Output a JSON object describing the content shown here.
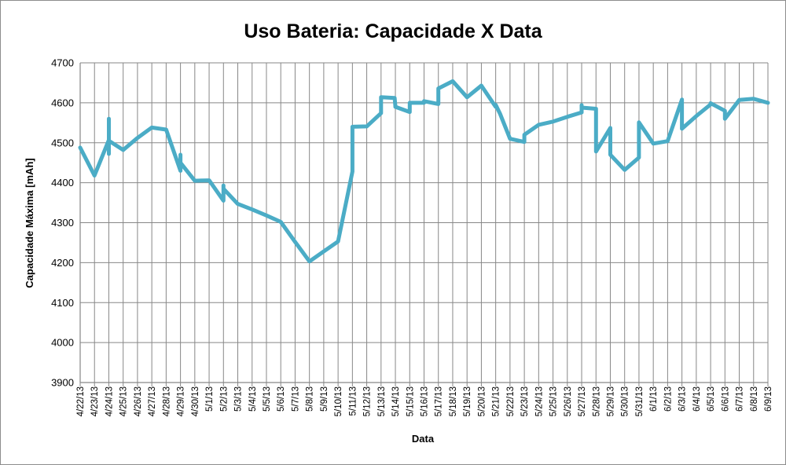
{
  "chart_data": {
    "type": "line",
    "title": "Uso Bateria: Capacidade X Data",
    "xlabel": "Data",
    "ylabel": "Capacidade Máxima [mAh]",
    "ylim": [
      3900,
      4700
    ],
    "ytick_step": 100,
    "grid": true,
    "legend": "none",
    "colors": {
      "line": "#4bacc6",
      "grid": "#878787",
      "axis": "#878787"
    },
    "categories": [
      "4/22/13",
      "4/23/13",
      "4/24/13",
      "4/25/13",
      "4/26/13",
      "4/27/13",
      "4/28/13",
      "4/29/13",
      "4/30/13",
      "5/1/13",
      "5/2/13",
      "5/3/13",
      "5/4/13",
      "5/5/13",
      "5/6/13",
      "5/7/13",
      "5/8/13",
      "5/9/13",
      "5/10/13",
      "5/11/13",
      "5/12/13",
      "5/13/13",
      "5/14/13",
      "5/15/13",
      "5/16/13",
      "5/17/13",
      "5/18/13",
      "5/19/13",
      "5/20/13",
      "5/21/13",
      "5/22/13",
      "5/23/13",
      "5/24/13",
      "5/25/13",
      "5/26/13",
      "5/27/13",
      "5/28/13",
      "5/29/13",
      "5/30/13",
      "5/31/13",
      "6/1/13",
      "6/2/13",
      "6/3/13",
      "6/4/13",
      "6/5/13",
      "6/6/13",
      "6/7/13",
      "6/8/13",
      "6/9/13"
    ],
    "series": [
      {
        "x": [
          0,
          1,
          2,
          2,
          2,
          2,
          3,
          4,
          5,
          6,
          7,
          7,
          7,
          8,
          9,
          10,
          10,
          10,
          11,
          12,
          13,
          14,
          15,
          16,
          17,
          18,
          19,
          19,
          20,
          21,
          21,
          21.95,
          22,
          22,
          23,
          23,
          24,
          24,
          25,
          25,
          26,
          27,
          28,
          29,
          29,
          29.3,
          30,
          31,
          31,
          32,
          33,
          34,
          35,
          35,
          35,
          36,
          36,
          37,
          37,
          38,
          39,
          39,
          40,
          41,
          42,
          42,
          43,
          44,
          44,
          45,
          45,
          46,
          47,
          48
        ],
        "y": [
          4488,
          4418,
          4507,
          4472,
          4560,
          4505,
          4482,
          4512,
          4538,
          4533,
          4430,
          4470,
          4450,
          4405,
          4406,
          4355,
          4393,
          4385,
          4347,
          4333,
          4318,
          4302,
          4252,
          4203,
          4228,
          4253,
          4428,
          4540,
          4541,
          4574,
          4614,
          4612,
          4592,
          4590,
          4577,
          4600,
          4600,
          4604,
          4597,
          4636,
          4654,
          4614,
          4643,
          4590,
          4595,
          4573,
          4510,
          4502,
          4520,
          4545,
          4553,
          4565,
          4576,
          4594,
          4588,
          4585,
          4478,
          4537,
          4470,
          4432,
          4463,
          4551,
          4498,
          4504,
          4608,
          4535,
          4567,
          4596,
          4599,
          4580,
          4560,
          4607,
          4610,
          4600
        ]
      }
    ]
  }
}
